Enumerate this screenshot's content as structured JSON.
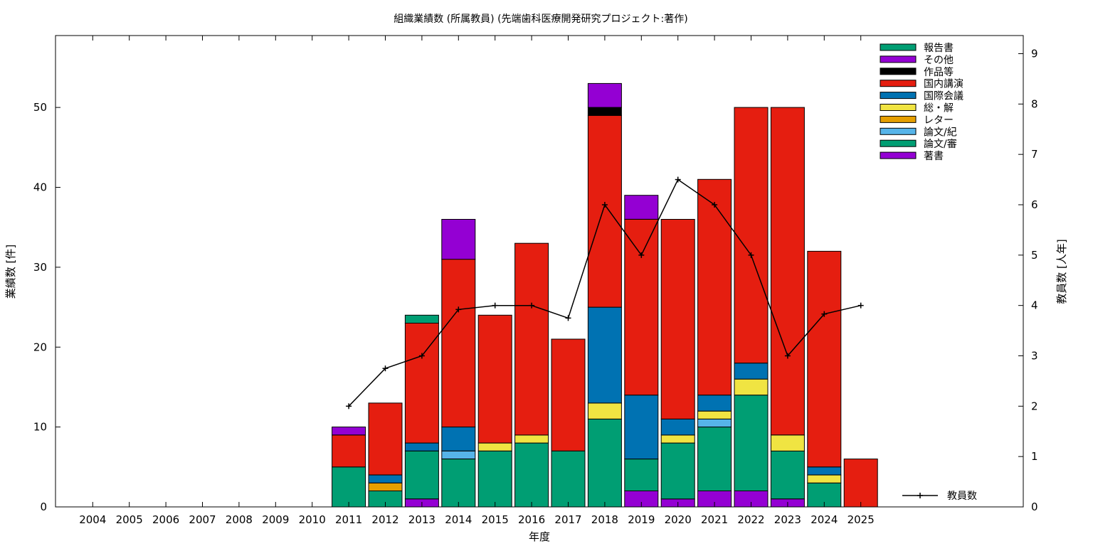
{
  "chart_data": {
    "type": "bar",
    "title": "組織業績数 (所属教員) (先端歯科医療開発研究プロジェクト:著作)",
    "xlabel": "年度",
    "ylabel": "業績数 [件]",
    "y2label": "教員数 [人年]",
    "categories": [
      "2004",
      "2005",
      "2006",
      "2007",
      "2008",
      "2009",
      "2010",
      "2011",
      "2012",
      "2013",
      "2014",
      "2015",
      "2016",
      "2017",
      "2018",
      "2019",
      "2020",
      "2021",
      "2022",
      "2023",
      "2024",
      "2025"
    ],
    "ylim": [
      0,
      59
    ],
    "y2lim": [
      0,
      9.36
    ],
    "yticks": [
      "0",
      "10",
      "20",
      "30",
      "40",
      "50"
    ],
    "y2ticks": [
      "0",
      "1",
      "2",
      "3",
      "4",
      "5",
      "6",
      "7",
      "8",
      "9"
    ],
    "stacked": true,
    "legend_position": "top-right",
    "series": [
      {
        "name": "著書",
        "color": "#9400d3",
        "values": [
          0,
          0,
          0,
          0,
          0,
          0,
          0,
          0,
          0,
          1,
          0,
          0,
          0,
          0,
          0,
          2,
          1,
          2,
          2,
          1,
          0,
          0
        ]
      },
      {
        "name": "論文/審",
        "color": "#009e73",
        "values": [
          0,
          0,
          0,
          0,
          0,
          0,
          0,
          5,
          2,
          6,
          6,
          7,
          8,
          7,
          11,
          4,
          7,
          8,
          12,
          6,
          3,
          0
        ]
      },
      {
        "name": "論文/紀",
        "color": "#56b4e9",
        "values": [
          0,
          0,
          0,
          0,
          0,
          0,
          0,
          0,
          0,
          0,
          1,
          0,
          0,
          0,
          0,
          0,
          0,
          1,
          0,
          0,
          0,
          0
        ]
      },
      {
        "name": "レター",
        "color": "#e69f00",
        "values": [
          0,
          0,
          0,
          0,
          0,
          0,
          0,
          0,
          1,
          0,
          0,
          0,
          0,
          0,
          0,
          0,
          0,
          0,
          0,
          0,
          0,
          0
        ]
      },
      {
        "name": "総・解",
        "color": "#f0e442",
        "values": [
          0,
          0,
          0,
          0,
          0,
          0,
          0,
          0,
          0,
          0,
          0,
          1,
          1,
          0,
          2,
          0,
          1,
          1,
          2,
          2,
          1,
          0
        ]
      },
      {
        "name": "国際会議",
        "color": "#0072b2",
        "values": [
          0,
          0,
          0,
          0,
          0,
          0,
          0,
          0,
          1,
          1,
          3,
          0,
          0,
          0,
          12,
          8,
          2,
          2,
          2,
          0,
          1,
          0
        ]
      },
      {
        "name": "国内講演",
        "color": "#e51e10",
        "values": [
          0,
          0,
          0,
          0,
          0,
          0,
          0,
          4,
          9,
          15,
          21,
          16,
          24,
          14,
          24,
          22,
          25,
          27,
          32,
          41,
          27,
          6
        ]
      },
      {
        "name": "作品等",
        "color": "#000000",
        "values": [
          0,
          0,
          0,
          0,
          0,
          0,
          0,
          0,
          0,
          0,
          0,
          0,
          0,
          0,
          1,
          0,
          0,
          0,
          0,
          0,
          0,
          0
        ]
      },
      {
        "name": "その他",
        "color": "#9400d3",
        "values": [
          0,
          0,
          0,
          0,
          0,
          0,
          0,
          1,
          0,
          0,
          5,
          0,
          0,
          0,
          3,
          3,
          0,
          0,
          0,
          0,
          0,
          0
        ]
      },
      {
        "name": "報告書",
        "color": "#009e73",
        "values": [
          0,
          0,
          0,
          0,
          0,
          0,
          0,
          0,
          0,
          1,
          0,
          0,
          0,
          0,
          0,
          0,
          0,
          0,
          0,
          0,
          0,
          0
        ]
      }
    ],
    "line_series": {
      "name": "教員数",
      "axis": "y2",
      "color": "#000000",
      "values": [
        null,
        null,
        null,
        null,
        null,
        null,
        null,
        2.0,
        2.75,
        3.0,
        3.92,
        4.0,
        4.0,
        3.75,
        6.0,
        5.0,
        6.5,
        6.0,
        5.0,
        3.0,
        3.83,
        4.0
      ]
    }
  }
}
